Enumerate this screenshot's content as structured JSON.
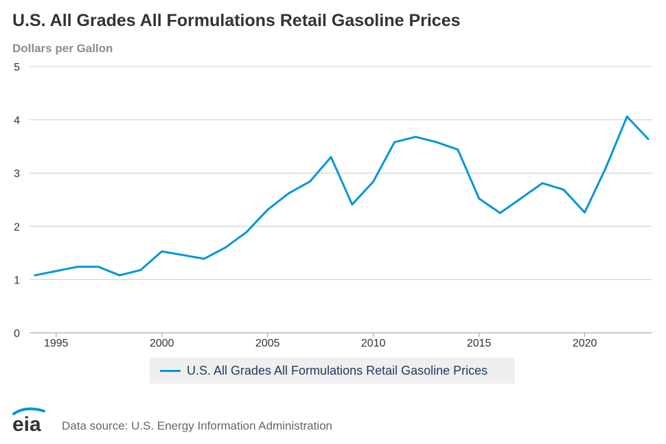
{
  "title": "U.S. All Grades All Formulations Retail Gasoline Prices",
  "subtitle": "Dollars per Gallon",
  "logo_text": "eia",
  "source": "Data source: U.S. Energy Information Administration",
  "colors": {
    "series": "#0096d7",
    "grid": "#cccccc",
    "legend_bg": "#efefef"
  },
  "chart_data": {
    "type": "line",
    "title": "U.S. All Grades All Formulations Retail Gasoline Prices",
    "ylabel": "Dollars per Gallon",
    "xlabel": "",
    "xlim": [
      1994,
      2023
    ],
    "ylim": [
      0,
      5
    ],
    "yticks": [
      0,
      1,
      2,
      3,
      4,
      5
    ],
    "xticks": [
      1995,
      2000,
      2005,
      2010,
      2015,
      2020
    ],
    "grid": true,
    "legend": "bottom-center",
    "series": [
      {
        "name": "U.S. All Grades All Formulations Retail Gasoline Prices",
        "x": [
          1994,
          1995,
          1996,
          1997,
          1998,
          1999,
          2000,
          2001,
          2002,
          2003,
          2004,
          2005,
          2006,
          2007,
          2008,
          2009,
          2010,
          2011,
          2012,
          2013,
          2014,
          2015,
          2016,
          2017,
          2018,
          2019,
          2020,
          2021,
          2022,
          2023
        ],
        "y": [
          1.08,
          1.16,
          1.24,
          1.24,
          1.08,
          1.18,
          1.53,
          1.46,
          1.39,
          1.6,
          1.89,
          2.31,
          2.62,
          2.84,
          3.3,
          2.41,
          2.84,
          3.58,
          3.68,
          3.58,
          3.44,
          2.52,
          2.25,
          2.53,
          2.81,
          2.69,
          2.26,
          3.1,
          4.06,
          3.64
        ]
      }
    ]
  }
}
